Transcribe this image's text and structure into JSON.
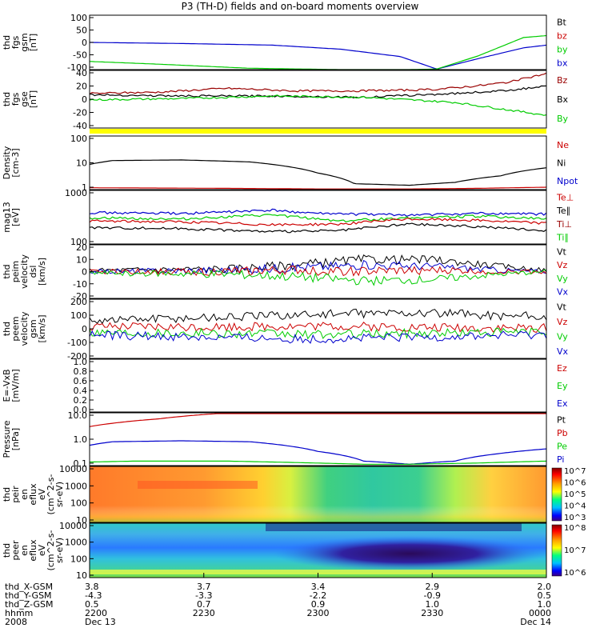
{
  "title": "P3 (TH-D) fields and on-board moments overview",
  "chart_data": {
    "type": "line",
    "x_ticks": [
      "Dec 13 2200",
      "2230",
      "2300",
      "2330",
      "Dec 14 0000"
    ],
    "panels": [
      {
        "id": "fgs-gsm",
        "ylabel": [
          "thd",
          "fgs",
          "gsm",
          "[nT]"
        ],
        "ylim": [
          -100,
          100
        ],
        "ticks": [
          "100",
          "50",
          "0",
          "-50",
          "-100"
        ],
        "legend": [
          {
            "name": "Bt",
            "color": "#000000"
          },
          {
            "name": "bz",
            "color": "#cc0000"
          },
          {
            "name": "by",
            "color": "#00cc00"
          },
          {
            "name": "bx",
            "color": "#0000cc"
          }
        ],
        "series": [
          {
            "name": "bx",
            "color": "#0000cc",
            "x": [
              0,
              0.2,
              0.4,
              0.55,
              0.68,
              0.76,
              0.85,
              0.95,
              1.0
            ],
            "y": [
              0,
              -4,
              -10,
              -25,
              -52,
              -98,
              -60,
              -20,
              -10
            ]
          },
          {
            "name": "by",
            "color": "#00cc00",
            "x": [
              0,
              0.15,
              0.35,
              0.55,
              0.7,
              0.76,
              0.85,
              0.95,
              1.0
            ],
            "y": [
              -70,
              -80,
              -95,
              -100,
              -100,
              -98,
              -50,
              18,
              25
            ]
          }
        ]
      },
      {
        "id": "fgs-gse",
        "ylabel": [
          "thd",
          "fgs",
          "gse",
          "[nT]"
        ],
        "ylim": [
          -50,
          40
        ],
        "ticks": [
          "40",
          "20",
          "0",
          "-20",
          "-40"
        ],
        "legend": [
          {
            "name": "Bz",
            "color": "#990000"
          },
          {
            "name": "Bx",
            "color": "#000000"
          },
          {
            "name": "By",
            "color": "#00cc00"
          }
        ],
        "series": [
          {
            "name": "Bz",
            "color": "#990000",
            "x": [
              0,
              0.15,
              0.3,
              0.45,
              0.6,
              0.75,
              0.85,
              0.92,
              1.0
            ],
            "y": [
              4,
              6,
              12,
              8,
              8,
              10,
              16,
              22,
              35
            ]
          },
          {
            "name": "Bx",
            "color": "#000000",
            "x": [
              0,
              0.2,
              0.4,
              0.6,
              0.8,
              0.9,
              1.0
            ],
            "y": [
              2,
              0,
              0,
              -2,
              4,
              8,
              15
            ]
          },
          {
            "name": "By",
            "color": "#00cc00",
            "x": [
              0,
              0.2,
              0.4,
              0.6,
              0.8,
              0.9,
              1.0
            ],
            "y": [
              -6,
              -4,
              0,
              -2,
              -10,
              -20,
              -30
            ]
          }
        ]
      },
      {
        "id": "density",
        "ylabel": [
          "Density",
          "[cm-3]"
        ],
        "scale": "log",
        "ylim": [
          0.7,
          200
        ],
        "ticks": [
          "100",
          "10",
          "1"
        ],
        "legend": [
          {
            "name": "Ne",
            "color": "#cc0000"
          },
          {
            "name": "Ni",
            "color": "#000000"
          },
          {
            "name": "Npot",
            "color": "#0000cc"
          }
        ],
        "series": [
          {
            "name": "Ni",
            "color": "#000000",
            "x": [
              0,
              0.05,
              0.2,
              0.35,
              0.5,
              0.58,
              0.7,
              0.8,
              0.9,
              1.0
            ],
            "y": [
              10,
              15,
              16,
              13,
              4,
              1.3,
              1.1,
              1.5,
              3,
              7
            ]
          },
          {
            "name": "Ne",
            "color": "#cc0000",
            "x": [
              0,
              0.3,
              0.5,
              0.7,
              0.85,
              1.0
            ],
            "y": [
              0.85,
              0.8,
              0.75,
              0.75,
              0.8,
              0.9
            ]
          }
        ]
      },
      {
        "id": "temperature",
        "ylabel": [
          "mag13",
          "[eV]"
        ],
        "scale": "log",
        "ylim": [
          100,
          1300
        ],
        "ticks": [
          "1000",
          "100"
        ],
        "legend": [
          {
            "name": "Te⊥",
            "color": "#cc0000"
          },
          {
            "name": "Te∥",
            "color": "#000000"
          },
          {
            "name": "Ti⊥",
            "color": "#990000"
          },
          {
            "name": "Ti∥",
            "color": "#00cc00"
          }
        ],
        "series": [
          {
            "name": "Vblue",
            "color": "#0000cc",
            "x": [
              0,
              0.2,
              0.4,
              0.5,
              0.7,
              0.85,
              1.0
            ],
            "y": [
              450,
              430,
              500,
              430,
              400,
              430,
              420
            ]
          },
          {
            "name": "Ti∥",
            "color": "#00cc00",
            "x": [
              0,
              0.2,
              0.4,
              0.55,
              0.7,
              0.85,
              1.0
            ],
            "y": [
              350,
              330,
              400,
              300,
              350,
              380,
              330
            ]
          },
          {
            "name": "Te⊥",
            "color": "#cc0000",
            "x": [
              0,
              0.2,
              0.4,
              0.55,
              0.7,
              0.85,
              1.0
            ],
            "y": [
              300,
              290,
              250,
              260,
              330,
              310,
              270
            ]
          },
          {
            "name": "Te∥",
            "color": "#000000",
            "x": [
              0,
              0.2,
              0.4,
              0.55,
              0.7,
              0.85,
              1.0
            ],
            "y": [
              220,
              210,
              180,
              190,
              260,
              230,
              190
            ]
          }
        ]
      },
      {
        "id": "velocity-dsl",
        "ylabel": [
          "thd",
          "peim",
          "velocity",
          "dsl",
          "[km/s]"
        ],
        "ylim": [
          -20,
          20
        ],
        "ticks": [
          "20",
          "10",
          "0",
          "-10",
          "-20"
        ],
        "legend": [
          {
            "name": "Vt",
            "color": "#000000"
          },
          {
            "name": "Vz",
            "color": "#cc0000"
          },
          {
            "name": "Vy",
            "color": "#00cc00"
          },
          {
            "name": "Vx",
            "color": "#0000cc"
          }
        ],
        "series": [
          {
            "name": "Vt",
            "color": "#000000",
            "x": [
              0,
              0.3,
              0.45,
              0.6,
              0.75,
              0.9,
              1.0
            ],
            "y": [
              1,
              2,
              5,
              9,
              9,
              4,
              1
            ]
          },
          {
            "name": "Vx",
            "color": "#0000cc",
            "x": [
              0,
              0.3,
              0.45,
              0.6,
              0.75,
              0.9,
              1.0
            ],
            "y": [
              0,
              1,
              3,
              5,
              4,
              1,
              0
            ]
          },
          {
            "name": "Vz",
            "color": "#cc0000",
            "x": [
              0,
              0.3,
              0.45,
              0.6,
              0.75,
              0.9,
              1.0
            ],
            "y": [
              0,
              0,
              1,
              0,
              1,
              0,
              0
            ]
          },
          {
            "name": "Vy",
            "color": "#00cc00",
            "x": [
              0,
              0.3,
              0.45,
              0.6,
              0.75,
              0.9,
              1.0
            ],
            "y": [
              -1,
              -2,
              -4,
              -7,
              -6,
              -2,
              0
            ]
          }
        ]
      },
      {
        "id": "velocity-gsm",
        "ylabel": [
          "thd",
          "peem",
          "velocity",
          "gsm",
          "[km/s]"
        ],
        "ylim": [
          -200,
          200
        ],
        "ticks": [
          "200",
          "100",
          "0",
          "-100",
          "-200"
        ],
        "legend": [
          {
            "name": "Vt",
            "color": "#000000"
          },
          {
            "name": "Vz",
            "color": "#cc0000"
          },
          {
            "name": "Vy",
            "color": "#00cc00"
          },
          {
            "name": "Vx",
            "color": "#0000cc"
          }
        ],
        "series": [
          {
            "name": "Vt",
            "color": "#000000",
            "x": [
              0,
              0.3,
              0.5,
              0.7,
              1.0
            ],
            "y": [
              60,
              80,
              100,
              110,
              80
            ]
          },
          {
            "name": "Vz",
            "color": "#cc0000",
            "x": [
              0,
              0.3,
              0.5,
              0.7,
              1.0
            ],
            "y": [
              10,
              15,
              20,
              10,
              5
            ]
          },
          {
            "name": "Vy",
            "color": "#00cc00",
            "x": [
              0,
              0.3,
              0.5,
              0.7,
              1.0
            ],
            "y": [
              -20,
              -30,
              -40,
              -30,
              -20
            ]
          },
          {
            "name": "Vx",
            "color": "#0000cc",
            "x": [
              0,
              0.3,
              0.5,
              0.7,
              1.0
            ],
            "y": [
              -40,
              -60,
              -70,
              -60,
              -40
            ]
          }
        ]
      },
      {
        "id": "efield",
        "ylabel": [
          "E=-VxB",
          "[mV/m]"
        ],
        "ylim": [
          0,
          1
        ],
        "ticks": [
          "1.0",
          "0.8",
          "0.6",
          "0.4",
          "0.2",
          "0.0"
        ],
        "legend": [
          {
            "name": "Ez",
            "color": "#cc0000"
          },
          {
            "name": "Ey",
            "color": "#00cc00"
          },
          {
            "name": "Ex",
            "color": "#0000cc"
          }
        ],
        "series": []
      },
      {
        "id": "pressure",
        "ylabel": [
          "Pressure",
          "[nPa]"
        ],
        "scale": "log",
        "ylim": [
          0.03,
          12
        ],
        "ticks": [
          "10.0",
          "1.0",
          "0.1"
        ],
        "legend": [
          {
            "name": "Pt",
            "color": "#000000"
          },
          {
            "name": "Pb",
            "color": "#cc0000"
          },
          {
            "name": "Pe",
            "color": "#00cc00"
          },
          {
            "name": "Pi",
            "color": "#0000cc"
          }
        ],
        "series": [
          {
            "name": "Pb",
            "color": "#cc0000",
            "x": [
              0,
              0.15,
              0.28
            ],
            "y": [
              2.5,
              6,
              11
            ]
          },
          {
            "name": "Pi",
            "color": "#0000cc",
            "x": [
              0,
              0.05,
              0.2,
              0.35,
              0.5,
              0.6,
              0.7,
              0.8,
              0.9,
              1.0
            ],
            "y": [
              0.3,
              0.45,
              0.5,
              0.45,
              0.15,
              0.05,
              0.035,
              0.05,
              0.12,
              0.2
            ]
          },
          {
            "name": "Pe",
            "color": "#00cc00",
            "x": [
              0,
              0.1,
              0.3,
              0.5,
              0.6,
              0.7,
              0.85,
              1.0
            ],
            "y": [
              0.045,
              0.05,
              0.05,
              0.04,
              0.035,
              0.035,
              0.04,
              0.05
            ]
          }
        ]
      },
      {
        "id": "ion-spectrogram",
        "type": "heatmap",
        "ylabel": [
          "thd",
          "peir",
          "en",
          "eflux",
          "eV",
          "(cm^2-s-",
          "sr-eV)"
        ],
        "ticks": [
          "10000",
          "1000",
          "100",
          "10"
        ],
        "colorbar": [
          "10^7",
          "10^6",
          "10^5",
          "10^4",
          "10^3"
        ]
      },
      {
        "id": "electron-spectrogram",
        "type": "heatmap",
        "ylabel": [
          "thd",
          "peer",
          "en",
          "eflux",
          "eV",
          "(cm^2-s-",
          "sr-eV)"
        ],
        "ticks": [
          "10000",
          "1000",
          "100",
          "10"
        ],
        "colorbar": [
          "10^8",
          "10^7",
          "10^6"
        ]
      }
    ],
    "ephemeris": {
      "rows": [
        {
          "label": "thd_X-GSM",
          "values": [
            "3.8",
            "3.7",
            "3.4",
            "2.9",
            "2.0"
          ]
        },
        {
          "label": "thd_Y-GSM",
          "values": [
            "-4.3",
            "-3.3",
            "-2.2",
            "-0.9",
            "0.5"
          ]
        },
        {
          "label": "thd_Z-GSM",
          "values": [
            "0.5",
            "0.7",
            "0.9",
            "1.0",
            "1.0"
          ]
        },
        {
          "label": "hhmm",
          "values": [
            "2200",
            "2230",
            "2300",
            "2330",
            "0000"
          ]
        },
        {
          "label": "2008",
          "values": [
            "Dec 13",
            "",
            "",
            "",
            "Dec 14"
          ]
        }
      ]
    }
  }
}
